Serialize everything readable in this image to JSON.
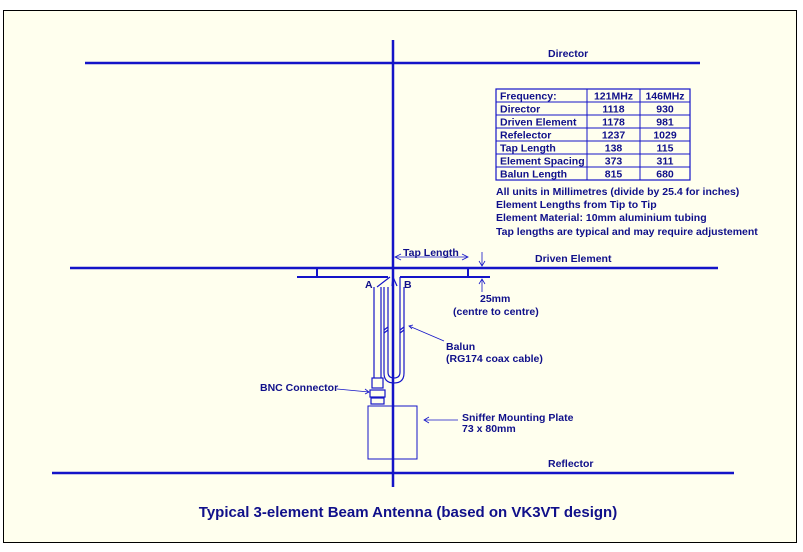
{
  "title": "Typical 3-element Beam Antenna (based on VK3VT design)",
  "labels": {
    "director": "Director",
    "driven_element": "Driven Element",
    "reflector": "Reflector",
    "tap_length": "Tap Length",
    "point_a": "A",
    "point_b": "B",
    "spacing": "25mm",
    "spacing_note": "(centre to centre)",
    "balun": "Balun",
    "balun_note": "(RG174 coax cable)",
    "bnc": "BNC Connector",
    "plate": "Sniffer Mounting Plate",
    "plate_size": "73 x 80mm"
  },
  "table": {
    "headers": [
      "Frequency:",
      "121MHz",
      "146MHz"
    ],
    "rows": [
      [
        "Director",
        "1118",
        "930"
      ],
      [
        "Driven Element",
        "1178",
        "981"
      ],
      [
        "Refelector",
        "1237",
        "1029"
      ],
      [
        "Tap Length",
        "138",
        "115"
      ],
      [
        "Element Spacing",
        "373",
        "311"
      ],
      [
        "Balun Length",
        "815",
        "680"
      ]
    ]
  },
  "notes": [
    "All units in Millimetres (divide by 25.4 for inches)",
    "Element Lengths from Tip to Tip",
    "Element Material: 10mm aluminium tubing",
    "Tap lengths are typical and may require adjustement"
  ],
  "colors": {
    "line": "#1010c8",
    "text": "#10108a",
    "background": "#ffffee"
  }
}
